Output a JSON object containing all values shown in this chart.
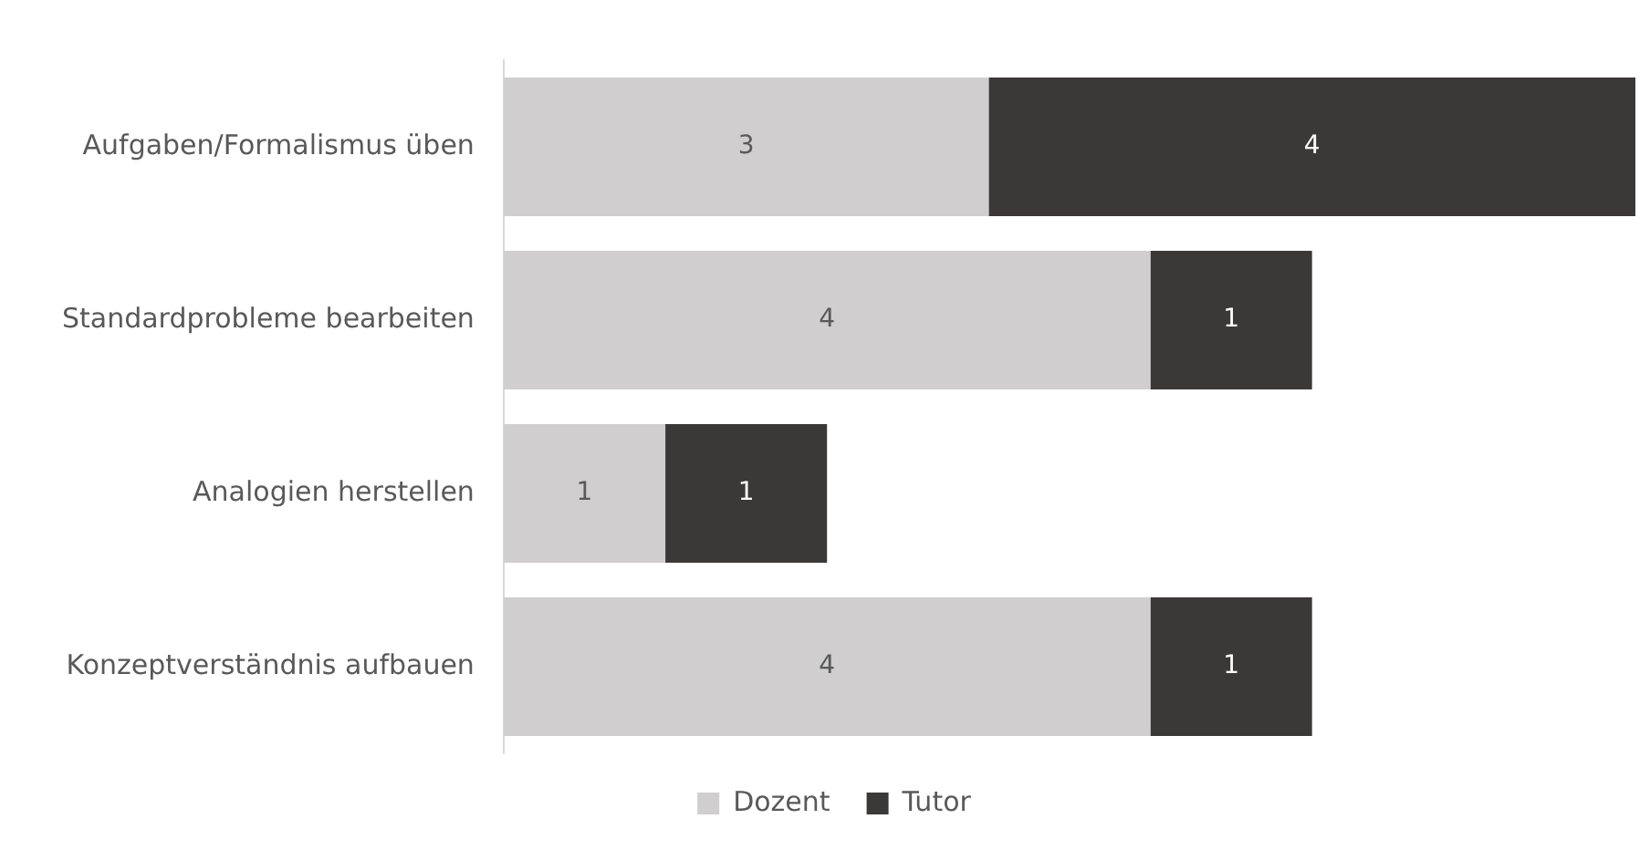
{
  "chart_data": {
    "type": "bar",
    "orientation": "horizontal",
    "stacked": true,
    "categories": [
      "Aufgaben/Formalismus üben",
      "Standardprobleme bearbeiten",
      "Analogien herstellen",
      "Konzeptverständnis aufbauen"
    ],
    "series": [
      {
        "name": "Dozent",
        "color": "#d0cece",
        "values": [
          3,
          4,
          1,
          4
        ]
      },
      {
        "name": "Tutor",
        "color": "#3b3838",
        "values": [
          4,
          1,
          1,
          1
        ]
      }
    ],
    "data_labels": true,
    "legend": "bottom",
    "grid": false
  }
}
